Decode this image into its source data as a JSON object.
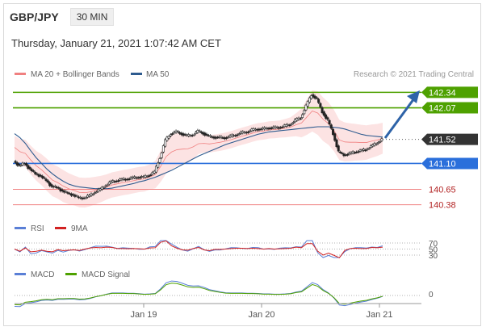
{
  "header": {
    "pair": "GBP/JPY",
    "timeframe": "30 MIN",
    "datetime": "Thursday, January 21, 2021 1:07:42 AM CET"
  },
  "colors": {
    "resistance": "#4ea100",
    "support": "#2a6fdb",
    "weak": "#f08080",
    "current": "#333333",
    "ma50": "#2e5b8f",
    "bb": "#f4a3a3",
    "rsi": "#5a7fd6",
    "rsi9": "#d22222",
    "macd": "#5a7fd6",
    "signal": "#4ea100"
  },
  "chart_data": {
    "type": "line",
    "title": "GBP/JPY",
    "legend": [
      {
        "name": "MA 20 + Bollinger Bands",
        "color": "#f08080"
      },
      {
        "name": "MA 50",
        "color": "#2e5b8f"
      }
    ],
    "copyright": "Research © 2021 Trading Central",
    "x_labels": [
      "Jan 19",
      "Jan 20",
      "Jan 21"
    ],
    "ylim": [
      140.22,
      142.5
    ],
    "levels": [
      {
        "label": "142.34",
        "value": 142.34,
        "kind": "resistance"
      },
      {
        "label": "142.07",
        "value": 142.07,
        "kind": "resistance"
      },
      {
        "label": "141.52",
        "value": 141.52,
        "kind": "current"
      },
      {
        "label": "141.10",
        "value": 141.1,
        "kind": "support"
      },
      {
        "label": "140.65",
        "value": 140.65,
        "kind": "weak"
      },
      {
        "label": "140.38",
        "value": 140.38,
        "kind": "weak"
      }
    ],
    "price": [
      141.14,
      141.06,
      141.1,
      141.0,
      140.92,
      140.88,
      140.8,
      140.7,
      140.68,
      140.62,
      140.58,
      140.55,
      140.5,
      140.5,
      140.54,
      140.6,
      140.65,
      140.72,
      140.78,
      140.8,
      140.82,
      140.83,
      140.85,
      140.86,
      140.86,
      140.9,
      140.95,
      141.2,
      141.5,
      141.62,
      141.65,
      141.62,
      141.58,
      141.6,
      141.66,
      141.63,
      141.57,
      141.56,
      141.55,
      141.55,
      141.57,
      141.6,
      141.63,
      141.65,
      141.68,
      141.7,
      141.7,
      141.72,
      141.72,
      141.73,
      141.75,
      141.78,
      141.85,
      141.9,
      142.1,
      142.3,
      142.22,
      142.0,
      141.85,
      141.62,
      141.3,
      141.25,
      141.27,
      141.3,
      141.32,
      141.34,
      141.4,
      141.45,
      141.52
    ],
    "ma50": [
      141.62,
      141.55,
      141.45,
      141.32,
      141.2,
      141.1,
      141.0,
      140.92,
      140.85,
      140.79,
      140.74,
      140.71,
      140.69,
      140.68,
      140.67,
      140.66,
      140.66,
      140.66,
      140.67,
      140.69,
      140.71,
      140.73,
      140.75,
      140.78,
      140.8,
      140.83,
      140.86,
      140.9,
      140.94,
      140.98,
      141.03,
      141.08,
      141.13,
      141.18,
      141.23,
      141.27,
      141.31,
      141.35,
      141.39,
      141.43,
      141.46,
      141.49,
      141.52,
      141.55,
      141.58,
      141.61,
      141.63,
      141.65,
      141.66,
      141.67,
      141.68,
      141.69,
      141.7,
      141.71,
      141.72,
      141.73,
      141.74,
      141.74,
      141.74,
      141.73,
      141.72,
      141.7,
      141.67,
      141.64,
      141.61,
      141.59,
      141.58,
      141.57,
      141.56
    ],
    "bb_width": [
      0.2,
      0.22,
      0.24,
      0.25,
      0.26,
      0.27,
      0.28,
      0.28,
      0.28,
      0.28,
      0.27,
      0.26,
      0.26,
      0.26,
      0.25,
      0.24,
      0.23,
      0.22,
      0.22,
      0.22,
      0.22,
      0.22,
      0.22,
      0.22,
      0.22,
      0.22,
      0.24,
      0.27,
      0.3,
      0.3,
      0.29,
      0.27,
      0.24,
      0.21,
      0.18,
      0.16,
      0.15,
      0.15,
      0.15,
      0.15,
      0.15,
      0.15,
      0.15,
      0.15,
      0.15,
      0.15,
      0.15,
      0.15,
      0.15,
      0.15,
      0.16,
      0.17,
      0.2,
      0.25,
      0.31,
      0.36,
      0.38,
      0.38,
      0.37,
      0.36,
      0.35,
      0.34,
      0.33,
      0.32,
      0.31,
      0.3,
      0.29,
      0.28,
      0.27
    ],
    "rsi": {
      "label": "RSI",
      "ma_label": "9MA",
      "levels": [
        "70",
        "50",
        "30"
      ]
    },
    "macd": {
      "label": "MACD",
      "signal_label": "MACD Signal",
      "zero_label": "0"
    }
  }
}
